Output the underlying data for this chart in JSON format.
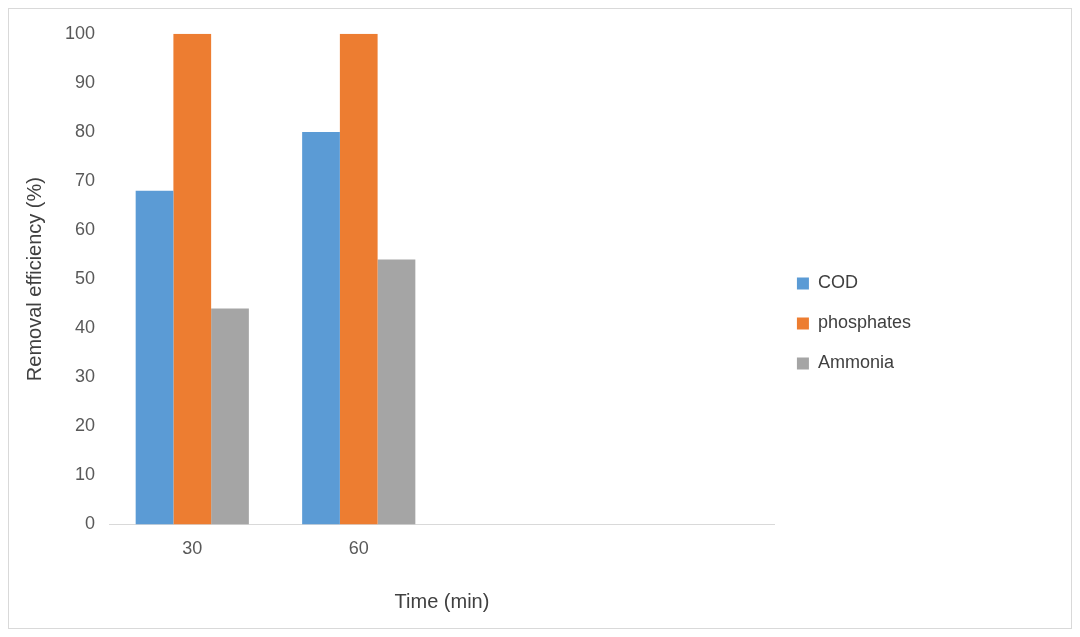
{
  "chart_data": {
    "type": "bar",
    "xlabel": "Time (min)",
    "ylabel": "Removal efficiency (%)",
    "categories": [
      "30",
      "60",
      null,
      null
    ],
    "series": [
      {
        "name": "COD",
        "color": "#5b9bd5",
        "values": [
          68,
          80,
          null,
          null
        ]
      },
      {
        "name": "phosphates",
        "color": "#ed7d31",
        "values": [
          100,
          100,
          null,
          null
        ]
      },
      {
        "name": "Ammonia",
        "color": "#a5a5a5",
        "values": [
          44,
          54,
          null,
          null
        ]
      }
    ],
    "ylim": [
      0,
      100
    ],
    "yticks": [
      0,
      10,
      20,
      30,
      40,
      50,
      60,
      70,
      80,
      90,
      100
    ],
    "grid": false,
    "legend": "right"
  }
}
